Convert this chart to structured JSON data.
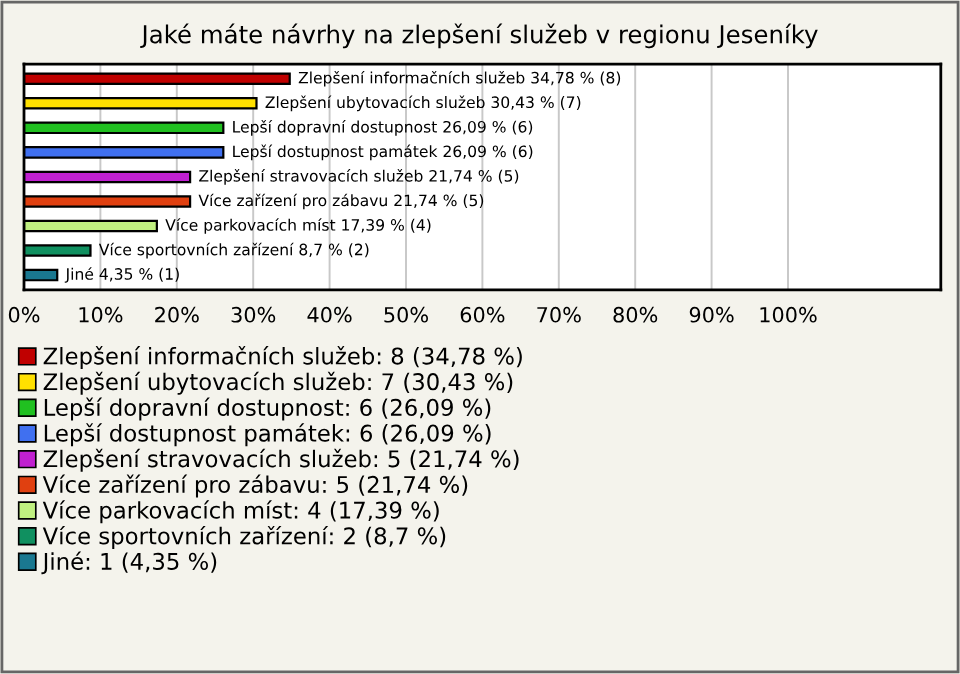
{
  "chart_data": {
    "type": "bar",
    "orientation": "horizontal",
    "title": "Jaké máte návrhy na zlepšení služeb v regionu Jeseníky",
    "categories": [
      null,
      null,
      null,
      null,
      null,
      null,
      null,
      null,
      null
    ],
    "series": [
      {
        "name": "Zlepšení informačních služeb: 8 (34,78 %)",
        "color": "#c00000",
        "values": [
          34.78,
          null,
          null,
          null,
          null,
          null,
          null,
          null,
          null
        ],
        "value_labels": [
          "Zlepšení informačních služeb 34,78 % (8)",
          null,
          null,
          null,
          null,
          null,
          null,
          null,
          null
        ]
      },
      {
        "name": "Zlepšení ubytovacích služeb: 7 (30,43 %)",
        "color": "#ffe000",
        "values": [
          null,
          30.43,
          null,
          null,
          null,
          null,
          null,
          null,
          null
        ],
        "value_labels": [
          null,
          "Zlepšení ubytovacích služeb 30,43 % (7)",
          null,
          null,
          null,
          null,
          null,
          null,
          null
        ]
      },
      {
        "name": "Lepší dopravní dostupnost: 6 (26,09 %)",
        "color": "#20c020",
        "values": [
          null,
          null,
          26.09,
          null,
          null,
          null,
          null,
          null,
          null
        ],
        "value_labels": [
          null,
          null,
          "Lepší dopravní dostupnost 26,09 % (6)",
          null,
          null,
          null,
          null,
          null,
          null
        ]
      },
      {
        "name": "Lepší dostupnost památek: 6 (26,09 %)",
        "color": "#4070f0",
        "values": [
          null,
          null,
          null,
          26.09,
          null,
          null,
          null,
          null,
          null
        ],
        "value_labels": [
          null,
          null,
          null,
          "Lepší dostupnost památek 26,09 % (6)",
          null,
          null,
          null,
          null,
          null
        ]
      },
      {
        "name": "Zlepšení stravovacích služeb: 5 (21,74 %)",
        "color": "#c020d0",
        "values": [
          null,
          null,
          null,
          null,
          21.74,
          null,
          null,
          null,
          null
        ],
        "value_labels": [
          null,
          null,
          null,
          null,
          "Zlepšení stravovacích služeb 21,74 % (5)",
          null,
          null,
          null,
          null
        ]
      },
      {
        "name": "Více zařízení pro zábavu: 5 (21,74 %)",
        "color": "#e04010",
        "values": [
          null,
          null,
          null,
          null,
          null,
          21.74,
          null,
          null,
          null
        ],
        "value_labels": [
          null,
          null,
          null,
          null,
          null,
          "Více zařízení pro zábavu 21,74 % (5)",
          null,
          null,
          null
        ]
      },
      {
        "name": "Více parkovacích míst: 4 (17,39 %)",
        "color": "#c0f080",
        "values": [
          null,
          null,
          null,
          null,
          null,
          null,
          17.39,
          null,
          null
        ],
        "value_labels": [
          null,
          null,
          null,
          null,
          null,
          null,
          "Více parkovacích míst 17,39 % (4)",
          null,
          null
        ]
      },
      {
        "name": "Více sportovních zařízení: 2 (8,7 %)",
        "color": "#109060",
        "values": [
          null,
          null,
          null,
          null,
          null,
          null,
          null,
          8.7,
          null
        ],
        "value_labels": [
          null,
          null,
          null,
          null,
          null,
          null,
          null,
          "Více sportovních zařízení 8,7 % (2)",
          null
        ]
      },
      {
        "name": "Jiné: 1 (4,35 %)",
        "color": "#1a7890",
        "values": [
          null,
          null,
          null,
          null,
          null,
          null,
          null,
          null,
          4.35
        ],
        "value_labels": [
          null,
          null,
          null,
          null,
          null,
          null,
          null,
          null,
          "Jiné 4,35 % (1)"
        ]
      }
    ],
    "xlim": [
      0,
      120
    ],
    "xticks": [
      {
        "value": 0,
        "label": "0%"
      },
      {
        "value": 10,
        "label": "10%"
      },
      {
        "value": 20,
        "label": "20%"
      },
      {
        "value": 30,
        "label": "30%"
      },
      {
        "value": 40,
        "label": "40%"
      },
      {
        "value": 50,
        "label": "50%"
      },
      {
        "value": 60,
        "label": "60%"
      },
      {
        "value": 70,
        "label": "70%"
      },
      {
        "value": 80,
        "label": "80%"
      },
      {
        "value": 90,
        "label": "90%"
      },
      {
        "value": 100,
        "label": "100%"
      }
    ],
    "grid": "x",
    "legend": "bottom"
  }
}
